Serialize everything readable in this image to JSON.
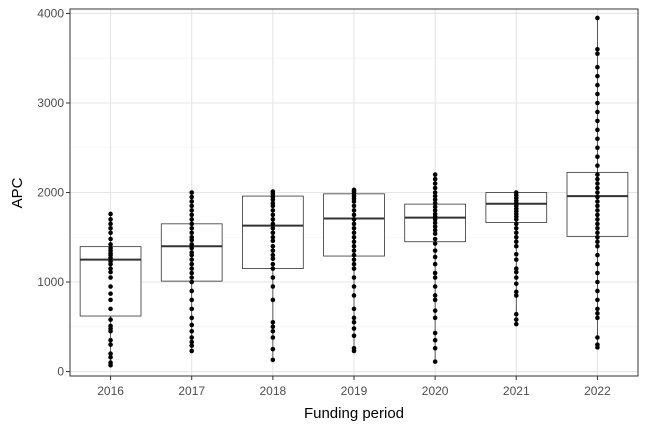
{
  "chart_data": {
    "type": "box",
    "xlabel": "Funding period",
    "ylabel": "APC",
    "ylim": [
      -50,
      4050
    ],
    "y_ticks": [
      0,
      1000,
      2000,
      3000,
      4000
    ],
    "grid": true,
    "categories": [
      "2016",
      "2017",
      "2018",
      "2019",
      "2020",
      "2021",
      "2022"
    ],
    "boxes": [
      {
        "q1": 620,
        "median": 1250,
        "q3": 1395
      },
      {
        "q1": 1010,
        "median": 1400,
        "q3": 1650
      },
      {
        "q1": 1150,
        "median": 1630,
        "q3": 1960
      },
      {
        "q1": 1290,
        "median": 1710,
        "q3": 1985
      },
      {
        "q1": 1450,
        "median": 1720,
        "q3": 1870
      },
      {
        "q1": 1665,
        "median": 1875,
        "q3": 2000
      },
      {
        "q1": 1510,
        "median": 1960,
        "q3": 2225
      }
    ],
    "points": [
      [
        70,
        100,
        160,
        200,
        300,
        350,
        450,
        480,
        510,
        580,
        700,
        800,
        870,
        950,
        1050,
        1110,
        1150,
        1200,
        1230,
        1270,
        1300,
        1320,
        1350,
        1380,
        1420,
        1480,
        1550,
        1600,
        1650,
        1700,
        1760
      ],
      [
        230,
        290,
        330,
        380,
        450,
        520,
        600,
        700,
        800,
        900,
        1000,
        1050,
        1100,
        1150,
        1200,
        1250,
        1300,
        1330,
        1380,
        1420,
        1470,
        1500,
        1550,
        1600,
        1650,
        1700,
        1750,
        1800,
        1850,
        1900,
        1950,
        2000
      ],
      [
        130,
        250,
        380,
        450,
        500,
        550,
        800,
        950,
        1050,
        1150,
        1200,
        1260,
        1300,
        1350,
        1400,
        1460,
        1500,
        1550,
        1600,
        1650,
        1700,
        1750,
        1800,
        1850,
        1880,
        1920,
        1950,
        1980,
        2010
      ],
      [
        230,
        260,
        400,
        480,
        550,
        600,
        700,
        850,
        950,
        1050,
        1150,
        1200,
        1250,
        1300,
        1350,
        1400,
        1450,
        1500,
        1550,
        1600,
        1650,
        1700,
        1750,
        1800,
        1850,
        1900,
        1930,
        1960,
        1990,
        2010,
        2030
      ],
      [
        110,
        260,
        350,
        430,
        600,
        680,
        800,
        850,
        950,
        1050,
        1100,
        1200,
        1280,
        1350,
        1430,
        1480,
        1540,
        1580,
        1620,
        1660,
        1700,
        1730,
        1760,
        1800,
        1840,
        1880,
        1920,
        1960,
        2000,
        2050,
        2100,
        2150,
        2200
      ],
      [
        530,
        580,
        640,
        850,
        890,
        980,
        1050,
        1110,
        1150,
        1250,
        1310,
        1400,
        1450,
        1500,
        1550,
        1600,
        1650,
        1700,
        1730,
        1760,
        1790,
        1820,
        1850,
        1880,
        1910,
        1940,
        1970,
        2000
      ],
      [
        270,
        300,
        380,
        600,
        650,
        700,
        800,
        900,
        1000,
        1100,
        1200,
        1300,
        1400,
        1450,
        1500,
        1550,
        1600,
        1650,
        1700,
        1750,
        1800,
        1850,
        1900,
        1950,
        2000,
        2050,
        2100,
        2150,
        2200,
        2300,
        2400,
        2500,
        2600,
        2700,
        2800,
        2900,
        3000,
        3100,
        3200,
        3300,
        3400,
        3550,
        3600,
        3950
      ]
    ]
  }
}
